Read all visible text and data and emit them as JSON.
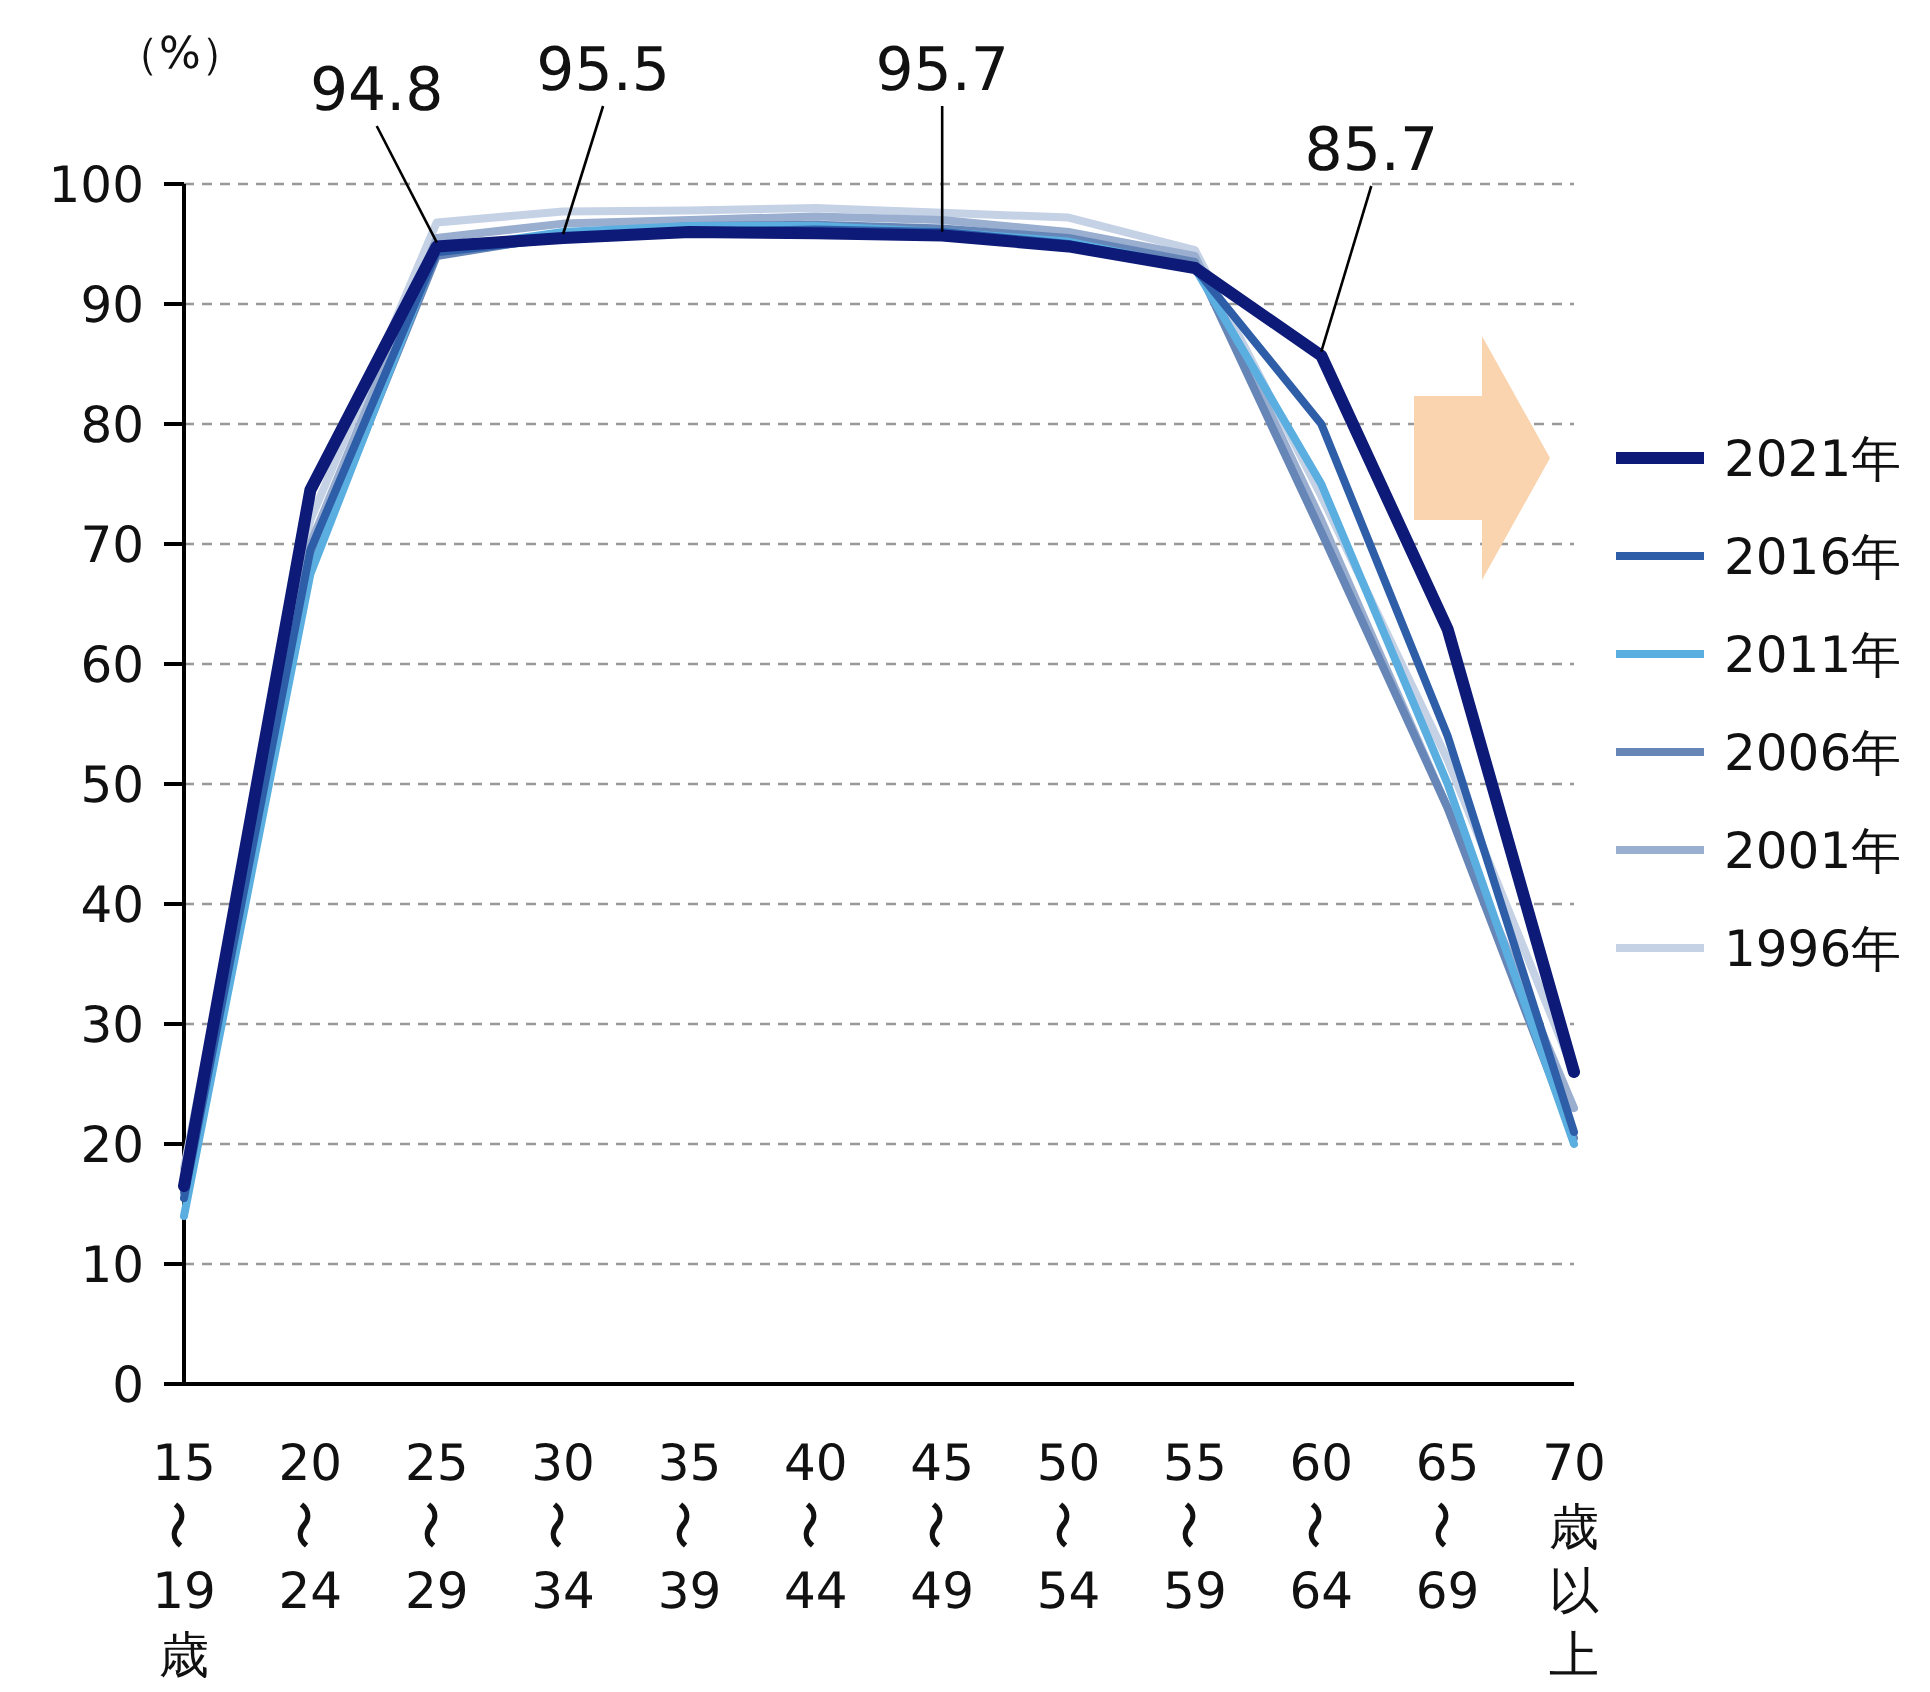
{
  "chart_data": {
    "type": "line",
    "ylabel": "（%）",
    "categories": [
      "15〜19歳",
      "20〜24",
      "25〜29",
      "30〜34",
      "35〜39",
      "40〜44",
      "45〜49",
      "50〜54",
      "55〜59",
      "60〜64",
      "65〜69",
      "70歳以上"
    ],
    "series": [
      {
        "name": "2021年",
        "color": "#0d1a78",
        "values": [
          16.5,
          74.5,
          94.8,
          95.5,
          96.0,
          95.9,
          95.7,
          94.8,
          93.0,
          85.7,
          62.9,
          26.0
        ]
      },
      {
        "name": "2016年",
        "color": "#2f5ea8",
        "values": [
          15.5,
          69.5,
          94.3,
          95.5,
          96.0,
          96.2,
          96.0,
          95.0,
          93.0,
          80.0,
          54.0,
          21.0
        ]
      },
      {
        "name": "2011年",
        "color": "#5aaee0",
        "values": [
          14.0,
          67.5,
          94.5,
          96.0,
          96.5,
          96.5,
          96.0,
          95.2,
          93.0,
          75.0,
          50.0,
          20.0
        ]
      },
      {
        "name": "2006年",
        "color": "#6786b8",
        "values": [
          16.0,
          68.0,
          94.0,
          95.7,
          96.5,
          96.6,
          96.3,
          95.5,
          93.5,
          71.0,
          48.0,
          20.5
        ]
      },
      {
        "name": "2001年",
        "color": "#9aaed0",
        "values": [
          17.0,
          70.0,
          95.5,
          96.7,
          97.0,
          97.3,
          97.0,
          96.0,
          94.0,
          72.0,
          48.0,
          23.0
        ]
      },
      {
        "name": "1996年",
        "color": "#c5d2e6",
        "values": [
          18.0,
          72.0,
          96.8,
          97.7,
          97.8,
          98.0,
          97.6,
          97.2,
          94.5,
          74.0,
          52.0,
          26.0
        ]
      }
    ],
    "annotations": [
      {
        "text": "94.8",
        "x": "25〜29",
        "y": 94.8
      },
      {
        "text": "95.5",
        "x": "30〜34",
        "y": 95.5
      },
      {
        "text": "95.7",
        "x": "45〜49",
        "y": 95.7
      },
      {
        "text": "85.7",
        "x": "60〜64",
        "y": 85.7
      }
    ],
    "ylim": [
      0,
      100
    ],
    "yticks": [
      0,
      10,
      20,
      30,
      40,
      50,
      60,
      70,
      80,
      90,
      100
    ],
    "grid": "y",
    "legend": "right",
    "marker": "none",
    "line_style": "solid"
  }
}
